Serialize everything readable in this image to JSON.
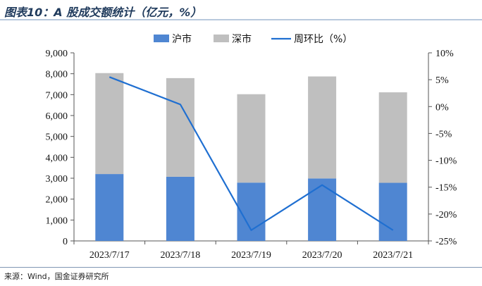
{
  "title": "图表10：A 股成交额统计（亿元，%）",
  "source": "来源：Wind，国金证券研究所",
  "colors": {
    "shanghai": "#4f86d2",
    "shenzhen": "#bfbfbf",
    "line": "#1f6fd1"
  },
  "chart_data": {
    "type": "bar",
    "stacked": true,
    "categories": [
      "2023/7/17",
      "2023/7/18",
      "2023/7/19",
      "2023/7/20",
      "2023/7/21"
    ],
    "series": [
      {
        "name": "沪市",
        "values": [
          3200,
          3070,
          2790,
          2990,
          2780
        ]
      },
      {
        "name": "深市",
        "values": [
          4830,
          4720,
          4230,
          4880,
          4330
        ]
      },
      {
        "name": "周环比（%）",
        "type": "line",
        "axis": "right",
        "values": [
          5.5,
          0.4,
          -23,
          -14.6,
          -23
        ]
      }
    ],
    "y_left": {
      "ylim": [
        0,
        9000
      ],
      "ticks": [
        "0",
        "1,000",
        "2,000",
        "3,000",
        "4,000",
        "5,000",
        "6,000",
        "7,000",
        "8,000",
        "9,000"
      ]
    },
    "y_right": {
      "ylim": [
        -25,
        10
      ],
      "ticks": [
        "-25%",
        "-20%",
        "-15%",
        "-10%",
        "-5%",
        "0%",
        "5%",
        "10%"
      ]
    },
    "legend_position": "top",
    "grid": false
  }
}
